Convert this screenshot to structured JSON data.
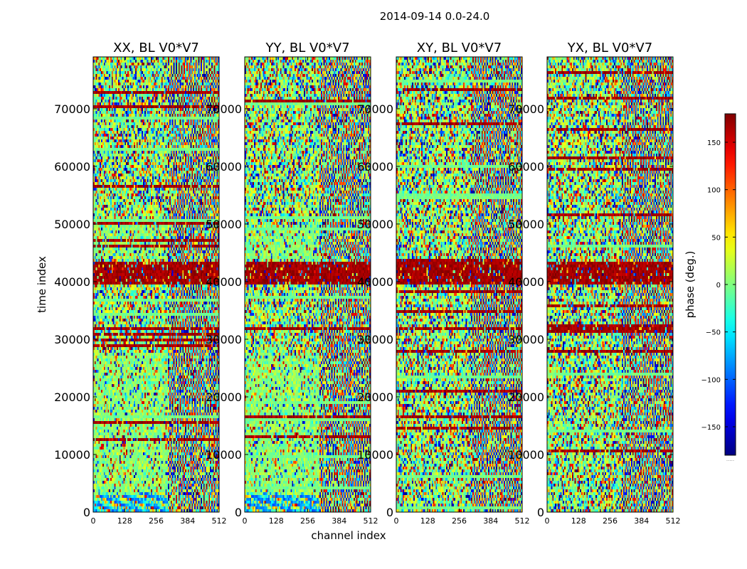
{
  "chart_data": {
    "type": "heatmap",
    "title": "2014-09-14 0.0-24.0",
    "xlabel": "channel index",
    "ylabel": "time index",
    "xlim": [
      0,
      512
    ],
    "ylim": [
      0,
      79000
    ],
    "x_ticks": [
      0,
      128,
      256,
      384,
      512
    ],
    "y_ticks": [
      0,
      10000,
      20000,
      30000,
      40000,
      50000,
      60000,
      70000
    ],
    "colormap": "jet",
    "panels": [
      {
        "title": "XX, BL V0*V7",
        "polarization": "XX"
      },
      {
        "title": "YY, BL V0*V7",
        "polarization": "YY"
      },
      {
        "title": "XY, BL V0*V7",
        "polarization": "XY"
      },
      {
        "title": "YX, BL V0*V7",
        "polarization": "YX"
      }
    ],
    "colorbar": {
      "label": "phase (deg.)",
      "range": [
        -180,
        180
      ],
      "ticks": [
        -150,
        -100,
        -50,
        0,
        50,
        100,
        150
      ],
      "extra_label": "....."
    }
  }
}
